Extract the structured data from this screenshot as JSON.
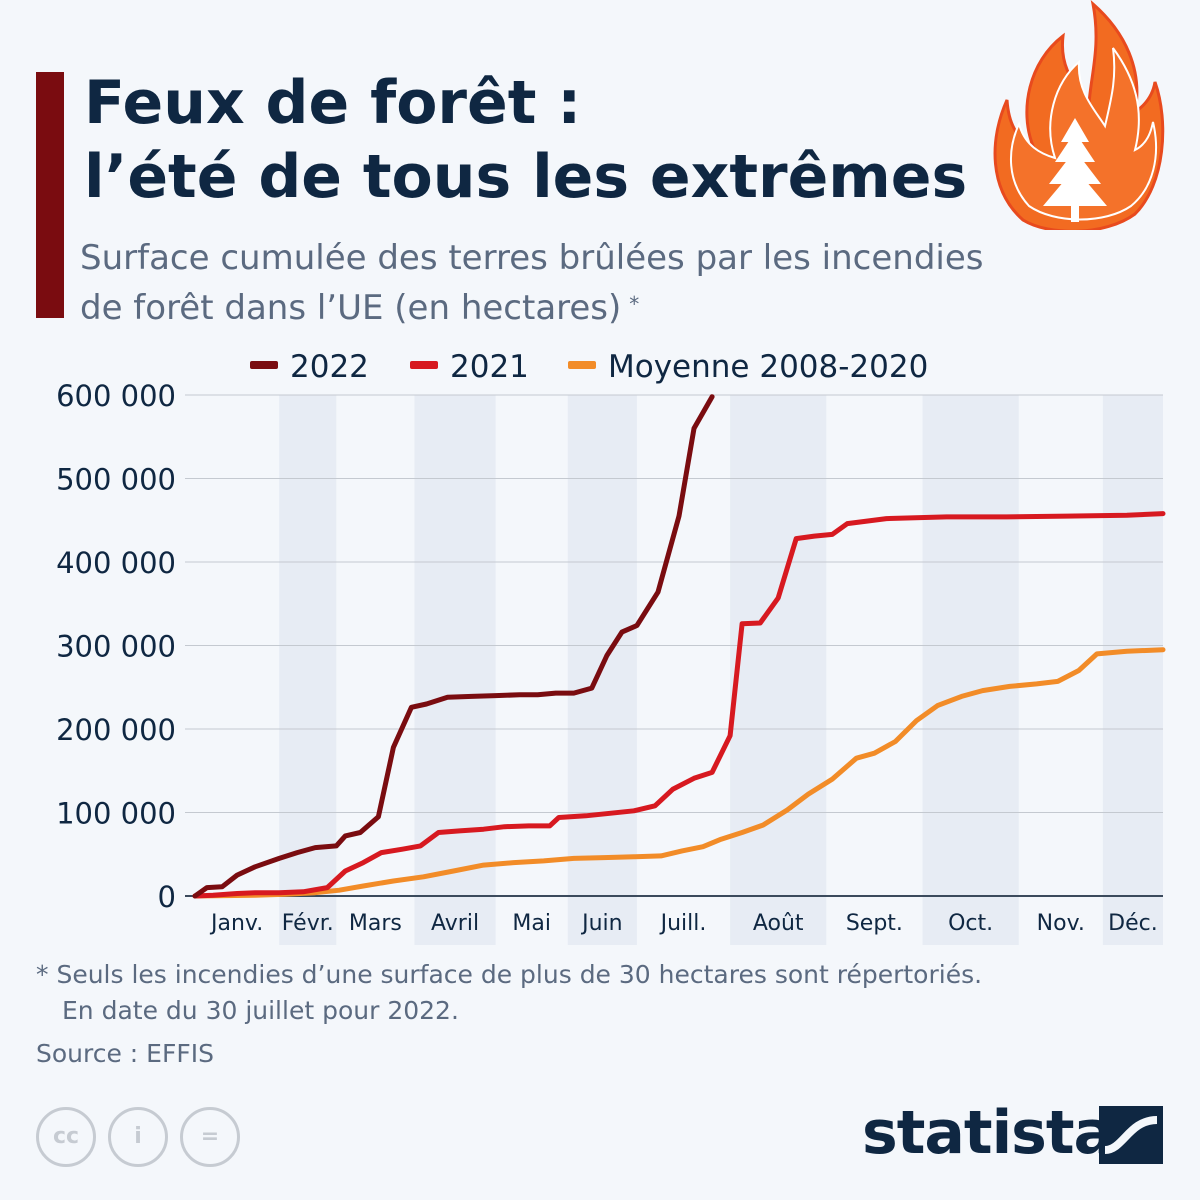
{
  "header": {
    "title_line1": "Feux de forêt :",
    "title_line2": "l’été de tous les extrêmes",
    "subtitle_line1": "Surface cumulée des terres brûlées par les incendies",
    "subtitle_line2": "de forêt dans l’UE (en hectares)",
    "subtitle_marker": "*",
    "icon": "fire-tree-icon"
  },
  "chart_data": {
    "type": "line",
    "x_unit": "month (Jan = 0, Dec end = 12)",
    "categories": [
      "Janv.",
      "Févr.",
      "Mars",
      "Avril",
      "Mai",
      "Juin",
      "Juill.",
      "Août",
      "Sept.",
      "Oct.",
      "Nov.",
      "Déc."
    ],
    "y_ticks": [
      "0",
      "100 000",
      "200 000",
      "300 000",
      "400 000",
      "500 000",
      "600 000"
    ],
    "ylim": [
      0,
      600000
    ],
    "grid": true,
    "legend_position": "top",
    "series": [
      {
        "name": "2022",
        "color": "#7a0c10",
        "points": [
          [
            0,
            0
          ],
          [
            0.2,
            10000
          ],
          [
            0.45,
            11000
          ],
          [
            0.7,
            25000
          ],
          [
            1,
            35000
          ],
          [
            1.4,
            45000
          ],
          [
            1.7,
            52000
          ],
          [
            2,
            58000
          ],
          [
            2.35,
            60000
          ],
          [
            2.5,
            72000
          ],
          [
            2.75,
            76000
          ],
          [
            3.05,
            95000
          ],
          [
            3.3,
            178000
          ],
          [
            3.6,
            226000
          ],
          [
            3.85,
            230000
          ],
          [
            4.2,
            238000
          ],
          [
            4.6,
            239000
          ],
          [
            5,
            240000
          ],
          [
            5.4,
            241000
          ],
          [
            5.7,
            241000
          ],
          [
            6,
            243000
          ],
          [
            6.3,
            243000
          ],
          [
            6.6,
            249000
          ],
          [
            6.85,
            288000
          ],
          [
            7.1,
            316000
          ],
          [
            7.35,
            324000
          ],
          [
            7.7,
            364000
          ],
          [
            8.05,
            455000
          ],
          [
            8.3,
            560000
          ],
          [
            8.6,
            598000
          ]
        ]
      },
      {
        "name": "2021",
        "color": "#d71920",
        "points": [
          [
            0,
            0
          ],
          [
            0.3,
            1000
          ],
          [
            0.7,
            3000
          ],
          [
            1,
            4000
          ],
          [
            1.4,
            4000
          ],
          [
            1.8,
            5000
          ],
          [
            2.2,
            10000
          ],
          [
            2.5,
            30000
          ],
          [
            2.8,
            40000
          ],
          [
            3.1,
            52000
          ],
          [
            3.45,
            56000
          ],
          [
            3.75,
            60000
          ],
          [
            4.05,
            76000
          ],
          [
            4.4,
            78000
          ],
          [
            4.8,
            80000
          ],
          [
            5.15,
            83000
          ],
          [
            5.55,
            84000
          ],
          [
            5.9,
            84000
          ],
          [
            6.05,
            94000
          ],
          [
            6.5,
            96000
          ],
          [
            6.9,
            99000
          ],
          [
            7.3,
            102000
          ],
          [
            7.65,
            108000
          ],
          [
            7.95,
            128000
          ],
          [
            8.3,
            141000
          ],
          [
            8.6,
            148000
          ],
          [
            8.9,
            192000
          ],
          [
            9.1,
            326000
          ],
          [
            9.4,
            327000
          ],
          [
            9.7,
            357000
          ],
          [
            10,
            428000
          ],
          [
            10.3,
            431000
          ],
          [
            10.6,
            433000
          ],
          [
            10.85,
            446000
          ],
          [
            11.5,
            452000
          ],
          [
            12.5,
            454000
          ],
          [
            13.5,
            454000
          ],
          [
            14.5,
            455000
          ],
          [
            15.5,
            456000
          ],
          [
            16.1,
            458000
          ]
        ]
      },
      {
        "name": "Moyenne 2008-2020",
        "color": "#f28c28",
        "points": [
          [
            0,
            0
          ],
          [
            0.5,
            500
          ],
          [
            1,
            1000
          ],
          [
            1.5,
            2000
          ],
          [
            2,
            4000
          ],
          [
            2.4,
            7000
          ],
          [
            2.8,
            12000
          ],
          [
            3.3,
            18000
          ],
          [
            3.8,
            23000
          ],
          [
            4.3,
            30000
          ],
          [
            4.8,
            37000
          ],
          [
            5.3,
            40000
          ],
          [
            5.8,
            42000
          ],
          [
            6.3,
            45000
          ],
          [
            6.8,
            46000
          ],
          [
            7.3,
            47000
          ],
          [
            7.75,
            48000
          ],
          [
            8.1,
            54000
          ],
          [
            8.45,
            59000
          ],
          [
            8.75,
            68000
          ],
          [
            9.1,
            76000
          ],
          [
            9.45,
            85000
          ],
          [
            9.85,
            103000
          ],
          [
            10.2,
            122000
          ],
          [
            10.6,
            140000
          ],
          [
            11,
            165000
          ],
          [
            11.3,
            171000
          ],
          [
            11.65,
            185000
          ],
          [
            12,
            210000
          ],
          [
            12.35,
            228000
          ],
          [
            12.75,
            239000
          ],
          [
            13.1,
            246000
          ],
          [
            13.55,
            251000
          ],
          [
            14,
            254000
          ],
          [
            14.35,
            257000
          ],
          [
            14.7,
            270000
          ],
          [
            15,
            290000
          ],
          [
            15.5,
            293000
          ],
          [
            16.1,
            295000
          ]
        ]
      }
    ]
  },
  "footnote": {
    "line1": "* Seuls les incendies d’une surface de plus de 30 hectares sont répertoriés.",
    "line2": "En date du 30 juillet pour 2022."
  },
  "source": "Source : EFFIS",
  "branding": {
    "logo_text": "statista",
    "cc_icons": [
      "cc",
      "i",
      "="
    ]
  }
}
